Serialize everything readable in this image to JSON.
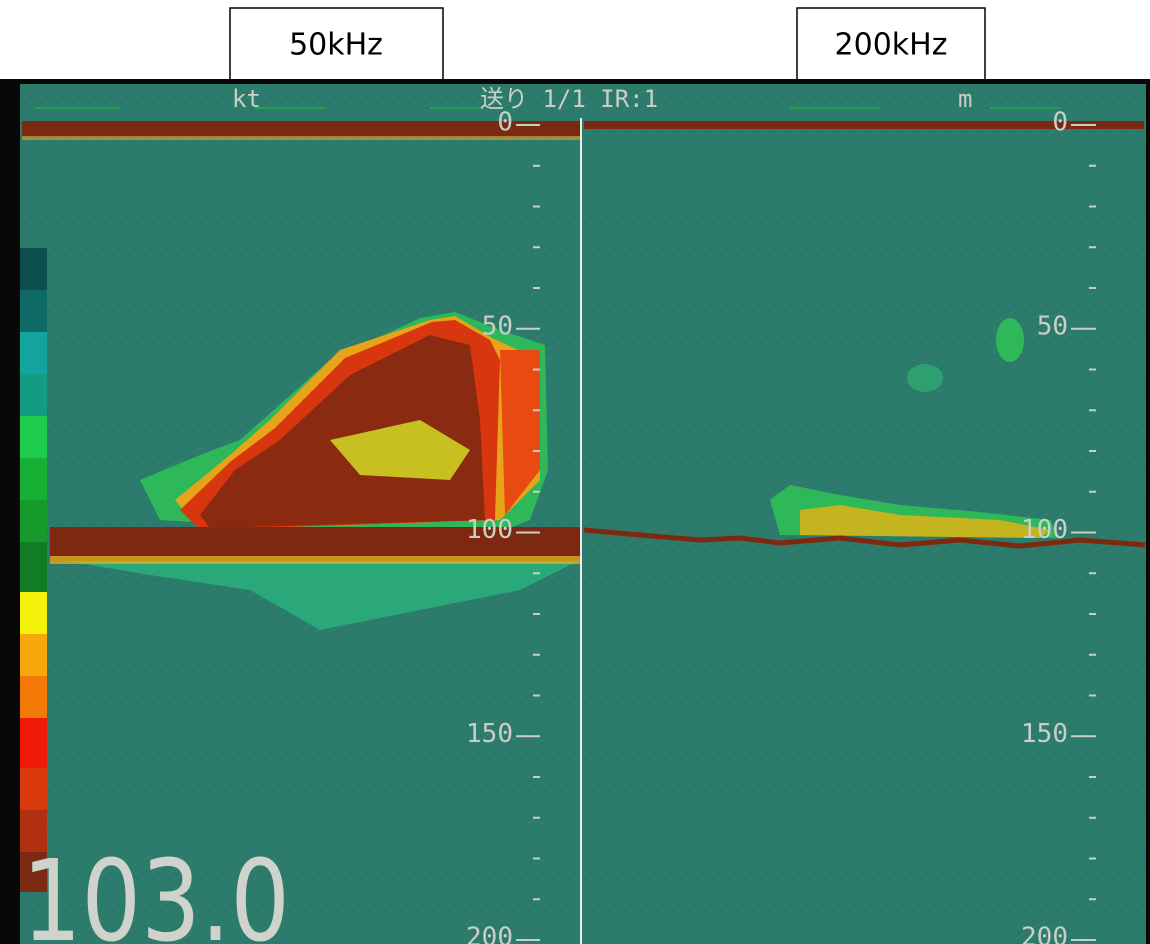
{
  "labels": {
    "left": "50kHz",
    "right": "200kHz"
  },
  "header": {
    "speed_unit": "kt",
    "mode": "送り 1/1 IR:1",
    "depth_unit": "m"
  },
  "depth_scale": {
    "range": [
      0,
      200
    ],
    "ticks": [
      0,
      50,
      100,
      150,
      200
    ]
  },
  "readout": "103.0"
}
